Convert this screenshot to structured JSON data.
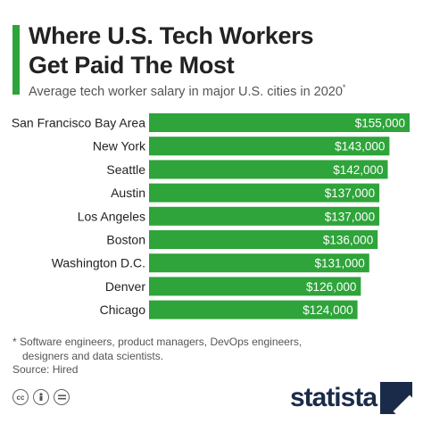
{
  "header": {
    "title_line1": "Where U.S. Tech Workers",
    "title_line2": "Get Paid The Most",
    "subtitle": "Average tech worker salary in major U.S. cities in 2020",
    "subtitle_marker": "*"
  },
  "chart_data": {
    "type": "bar",
    "orientation": "horizontal",
    "categories": [
      "San Francisco Bay Area",
      "New York",
      "Seattle",
      "Austin",
      "Los Angeles",
      "Boston",
      "Washington D.C.",
      "Denver",
      "Chicago"
    ],
    "values": [
      155000,
      143000,
      142000,
      137000,
      137000,
      136000,
      131000,
      126000,
      124000
    ],
    "value_labels": [
      "$155,000",
      "$143,000",
      "$142,000",
      "$137,000",
      "$137,000",
      "$136,000",
      "$131,000",
      "$126,000",
      "$124,000"
    ],
    "xlim": [
      0,
      155000
    ],
    "bar_color": "#2ea43a",
    "grid": false,
    "legend": "none"
  },
  "footer": {
    "note_line1": "* Software engineers, product managers, DevOps engineers,",
    "note_line2": "designers and data scientists.",
    "source": "Source: Hired",
    "cc_icons": [
      "cc-icon",
      "by-icon",
      "nd-icon"
    ],
    "brand": "statista",
    "brand_color": "#1a2b4a"
  }
}
